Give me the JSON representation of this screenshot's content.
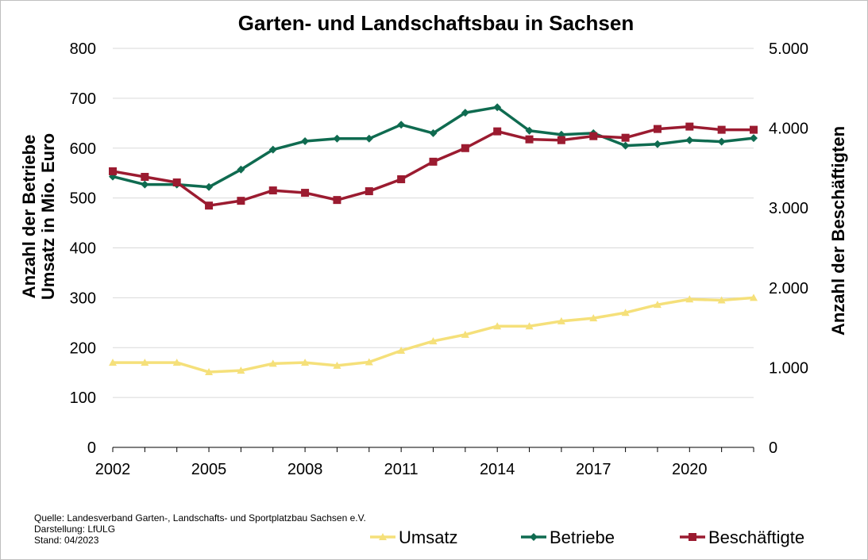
{
  "chart_data": {
    "type": "line",
    "title": "Garten- und Landschaftsbau in Sachsen",
    "x": [
      2002,
      2003,
      2004,
      2005,
      2006,
      2007,
      2008,
      2009,
      2010,
      2011,
      2012,
      2013,
      2014,
      2015,
      2016,
      2017,
      2018,
      2019,
      2020,
      2021,
      2022
    ],
    "x_tick_labels": [
      "2002",
      "2005",
      "2008",
      "2011",
      "2014",
      "2017",
      "2020"
    ],
    "y_left": {
      "label_lines": [
        "Anzahl der Betriebe",
        "Umsatz in Mio. Euro"
      ],
      "range": [
        0,
        800
      ],
      "ticks": [
        "0",
        "100",
        "200",
        "300",
        "400",
        "500",
        "600",
        "700",
        "800"
      ]
    },
    "y_right": {
      "label": "Anzahl der Beschäftigten",
      "range": [
        0,
        5000
      ],
      "ticks": [
        "0",
        "1.000",
        "2.000",
        "3.000",
        "4.000",
        "5.000"
      ]
    },
    "grid": "horizontal",
    "legend_position": "bottom-right",
    "series": [
      {
        "name": "Umsatz",
        "axis": "left",
        "color": "#f5e07a",
        "marker": "triangle",
        "values": [
          170,
          170,
          170,
          151,
          154,
          168,
          170,
          164,
          171,
          194,
          213,
          226,
          243,
          243,
          253,
          259,
          270,
          286,
          297,
          295,
          300
        ]
      },
      {
        "name": "Betriebe",
        "axis": "left",
        "color": "#0f6b50",
        "marker": "diamond",
        "values": [
          543,
          527,
          527,
          522,
          557,
          597,
          614,
          619,
          619,
          647,
          630,
          671,
          682,
          635,
          627,
          630,
          605,
          608,
          616,
          613,
          620
        ]
      },
      {
        "name": "Beschäftigte",
        "axis": "right",
        "color": "#9b1b30",
        "marker": "square",
        "values": [
          3460,
          3390,
          3320,
          3030,
          3090,
          3220,
          3190,
          3100,
          3210,
          3360,
          3580,
          3750,
          3960,
          3860,
          3850,
          3900,
          3880,
          3990,
          4020,
          3980,
          3980
        ]
      }
    ]
  },
  "source_lines": [
    "Quelle: Landesverband Garten-, Landschafts- und Sportplatzbau Sachsen e.V.",
    "Darstellung: LfULG",
    "Stand: 04/2023"
  ],
  "colors": {
    "gridline": "#d9d9d9",
    "axis": "#000000",
    "border": "#bfbfbf"
  }
}
